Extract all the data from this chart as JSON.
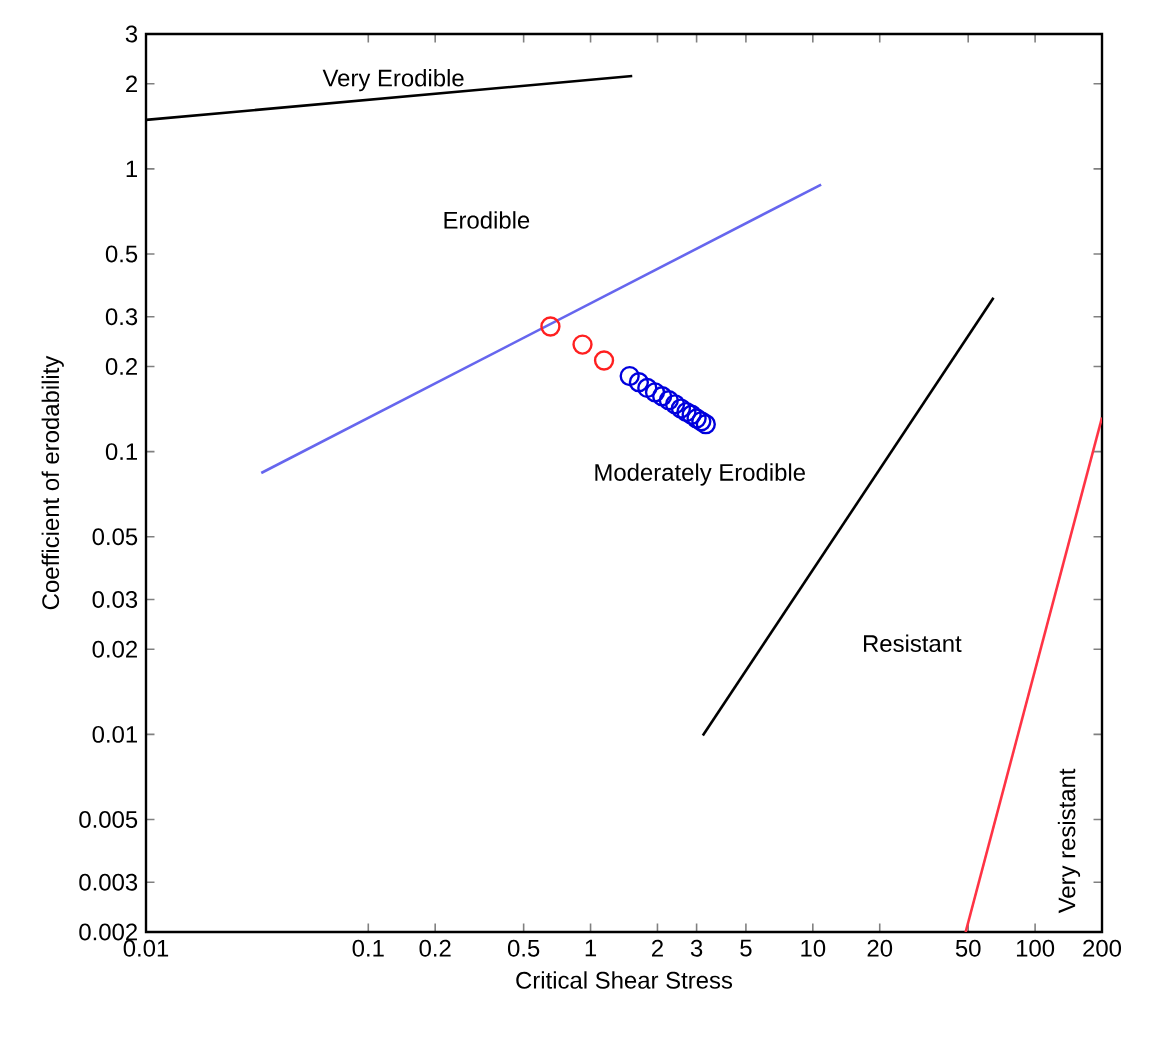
{
  "chart_data": {
    "type": "scatter",
    "xlabel": "Critical Shear Stress",
    "ylabel": "Coefficient of erodability",
    "log": "xy",
    "grid": false,
    "xlim": [
      0.01,
      200
    ],
    "ylim": [
      0.002,
      3
    ],
    "xticks": [
      0.01,
      0.1,
      0.2,
      0.5,
      1,
      2,
      3,
      5,
      10,
      20,
      50,
      100,
      200
    ],
    "yticks": [
      0.002,
      0.003,
      0.005,
      0.01,
      0.02,
      0.03,
      0.05,
      0.1,
      0.2,
      0.3,
      0.5,
      1,
      2,
      3
    ],
    "series": [
      {
        "type": "line",
        "color": "#000000",
        "x": [
          0.01,
          1.54
        ],
        "values": [
          1.49,
          2.13
        ]
      },
      {
        "type": "line",
        "color": "#6666ee",
        "x": [
          0.033,
          10.9
        ],
        "values": [
          0.084,
          0.88
        ]
      },
      {
        "type": "line",
        "color": "#000000",
        "x": [
          3.2,
          65
        ],
        "values": [
          0.0099,
          0.35
        ]
      },
      {
        "type": "line",
        "color": "#ff3344",
        "x": [
          48.7,
          200
        ],
        "values": [
          0.002,
          0.132
        ]
      },
      {
        "color": "#ff2020",
        "marker": "circle",
        "x": [
          0.66,
          0.92,
          1.15
        ],
        "values": [
          0.277,
          0.239,
          0.21
        ]
      },
      {
        "color": "#0000dd",
        "marker": "circle",
        "x": [
          1.5,
          1.65,
          1.8,
          1.95,
          2.1,
          2.25,
          2.4,
          2.55,
          2.7,
          2.85,
          3.0,
          3.15,
          3.3
        ],
        "values": [
          0.185,
          0.176,
          0.168,
          0.162,
          0.157,
          0.152,
          0.147,
          0.142,
          0.138,
          0.135,
          0.131,
          0.128,
          0.125
        ]
      }
    ],
    "annotations": [
      "Very Erodible",
      "Erodible",
      "Moderately Erodible",
      "Resistant",
      "Very resistant"
    ]
  }
}
